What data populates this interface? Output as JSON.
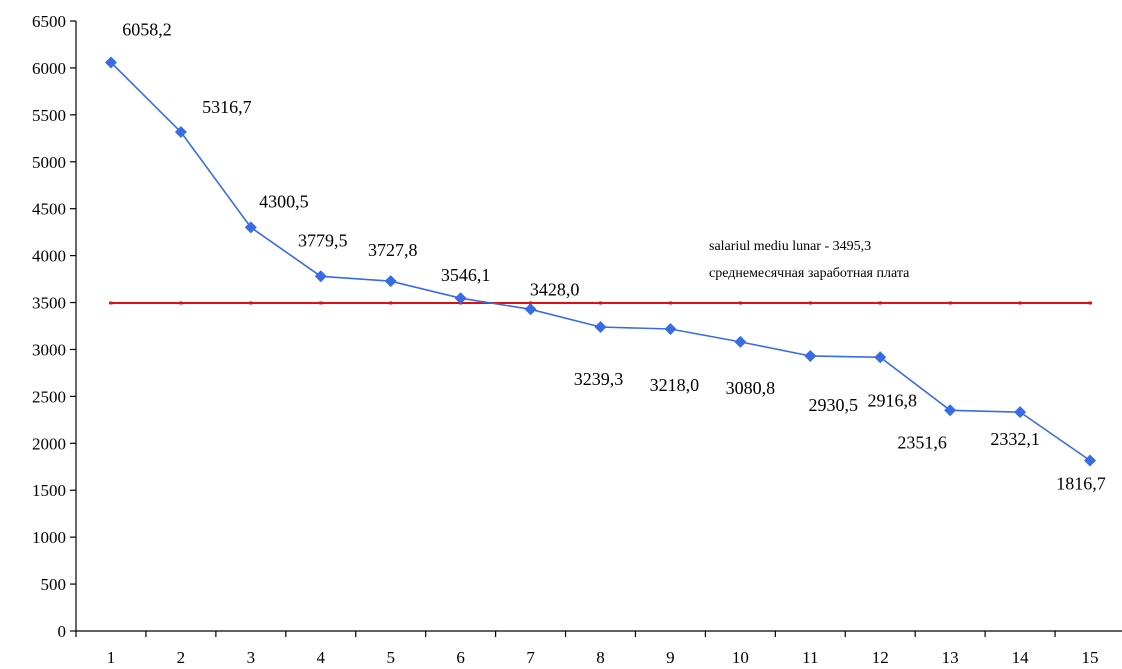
{
  "chart_data": {
    "type": "line",
    "title": "",
    "xlabel": "",
    "ylabel": "",
    "x": [
      1,
      2,
      3,
      4,
      5,
      6,
      7,
      8,
      9,
      10,
      11,
      12,
      13,
      14,
      15
    ],
    "series": [
      {
        "color": "#3a6be6",
        "marker": "diamond",
        "values": [
          6058.2,
          5316.7,
          4300.5,
          3779.5,
          3727.8,
          3546.1,
          3428.0,
          3239.3,
          3218.0,
          3080.8,
          2930.5,
          2916.8,
          2351.6,
          2332.1,
          1816.7
        ],
        "labels": [
          "6058,2",
          "5316,7",
          "4300,5",
          "3779,5",
          "3727,8",
          "3546,1",
          "3428,0",
          "3239,3",
          "3218,0",
          "3080,8",
          "2930,5",
          "2916,8",
          "2351,6",
          "2332,1",
          "1816,7"
        ]
      }
    ],
    "reference_line": {
      "value": 3495.3,
      "color": "#e01010",
      "label_line1": "salariul mediu lunar - 3495,3",
      "label_line2": "среднемесячная заработная плата"
    },
    "y_ticks": [
      0,
      500,
      1000,
      1500,
      2000,
      2500,
      3000,
      3500,
      4000,
      4500,
      5000,
      5500,
      6000,
      6500
    ],
    "x_ticks": [
      "1",
      "2",
      "3",
      "4",
      "5",
      "6",
      "7",
      "8",
      "9",
      "10",
      "11",
      "12",
      "13",
      "14",
      "15"
    ],
    "ylim": [
      0,
      6500
    ],
    "grid": false,
    "legend": "none"
  }
}
